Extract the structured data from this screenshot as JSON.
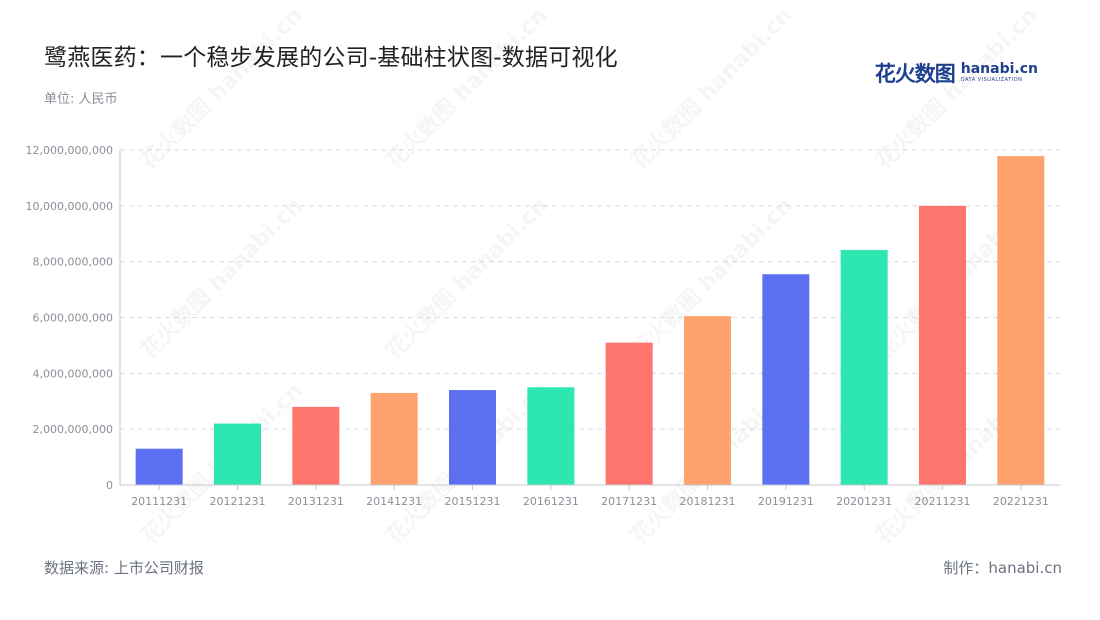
{
  "header": {
    "title": "鹭燕医药：一个稳步发展的公司-基础柱状图-数据可视化",
    "unit": "单位: 人民币"
  },
  "logo": {
    "cn": "花火数图",
    "en": "hanabi.cn",
    "en_sub": "DATA VISUALIZATION"
  },
  "footer": {
    "source": "数据来源: 上市公司财报",
    "maker": "制作：hanabi.cn"
  },
  "chart_data": {
    "type": "bar",
    "categories": [
      "20111231",
      "20121231",
      "20131231",
      "20141231",
      "20151231",
      "20161231",
      "20171231",
      "20181231",
      "20191231",
      "20201231",
      "20211231",
      "20221231"
    ],
    "values": [
      1300000000,
      2200000000,
      2800000000,
      3300000000,
      3400000000,
      3500000000,
      5100000000,
      6050000000,
      7550000000,
      8420000000,
      10000000000,
      11780000000
    ],
    "ylim": [
      0,
      12000000000
    ],
    "yticks": [
      0,
      2000000000,
      4000000000,
      6000000000,
      8000000000,
      10000000000,
      12000000000
    ],
    "ytick_labels": [
      "0",
      "2,000,000,000",
      "4,000,000,000",
      "6,000,000,000",
      "8,000,000,000",
      "10,000,000,000",
      "12,000,000,000"
    ],
    "colors": [
      "#5b6ff0",
      "#2de6b0",
      "#ff766f",
      "#ffa26d"
    ],
    "grid": true
  }
}
